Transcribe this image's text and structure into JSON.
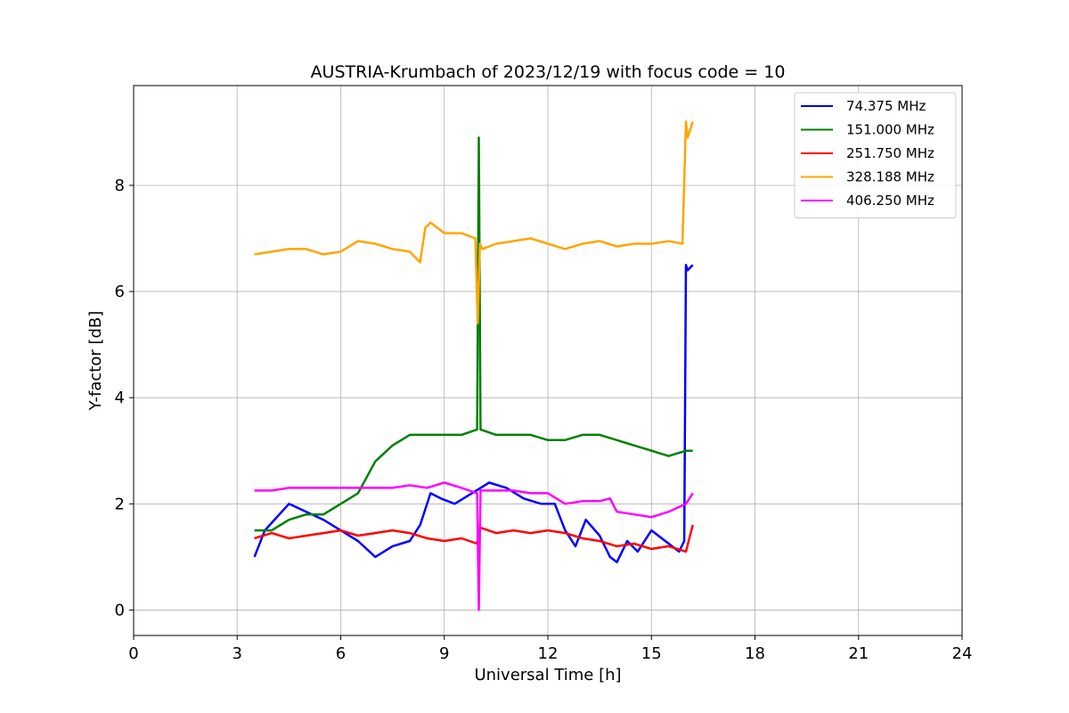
{
  "chart_data": {
    "type": "line",
    "title": "AUSTRIA-Krumbach of 2023/12/19 with focus code = 10",
    "xlabel": "Universal Time [h]",
    "ylabel": "Y-factor [dB]",
    "xlim": [
      0,
      24
    ],
    "ylim": [
      -0.48,
      9.88
    ],
    "x_ticks": [
      0,
      3,
      6,
      9,
      12,
      15,
      18,
      21,
      24
    ],
    "y_ticks": [
      0,
      2,
      4,
      6,
      8
    ],
    "grid": true,
    "legend_position": "top-right",
    "series": [
      {
        "name": " 74.375 MHz",
        "color": "#0000ff",
        "x": [
          3.5,
          3.8,
          4.5,
          5.5,
          6.5,
          7.0,
          7.5,
          8.0,
          8.3,
          8.6,
          8.9,
          9.3,
          9.8,
          10.3,
          10.8,
          11.3,
          11.8,
          12.2,
          12.5,
          12.8,
          13.1,
          13.5,
          13.8,
          14.0,
          14.3,
          14.6,
          15.0,
          15.4,
          15.8,
          15.95,
          16.0,
          16.05,
          16.2
        ],
        "y": [
          1.0,
          1.5,
          2.0,
          1.7,
          1.3,
          1.0,
          1.2,
          1.3,
          1.6,
          2.2,
          2.1,
          2.0,
          2.2,
          2.4,
          2.3,
          2.1,
          2.0,
          2.0,
          1.5,
          1.2,
          1.7,
          1.4,
          1.0,
          0.9,
          1.3,
          1.1,
          1.5,
          1.3,
          1.1,
          1.3,
          6.5,
          6.4,
          6.5
        ]
      },
      {
        "name": "151.000 MHz",
        "color": "#008000",
        "x": [
          3.5,
          4.0,
          4.5,
          5.0,
          5.5,
          6.0,
          6.5,
          7.0,
          7.5,
          8.0,
          8.5,
          9.0,
          9.5,
          9.95,
          10.0,
          10.05,
          10.5,
          11.0,
          11.5,
          12.0,
          12.5,
          13.0,
          13.5,
          14.0,
          14.5,
          15.0,
          15.5,
          16.0,
          16.2
        ],
        "y": [
          1.5,
          1.5,
          1.7,
          1.8,
          1.8,
          2.0,
          2.2,
          2.8,
          3.1,
          3.3,
          3.3,
          3.3,
          3.3,
          3.4,
          8.9,
          3.4,
          3.3,
          3.3,
          3.3,
          3.2,
          3.2,
          3.3,
          3.3,
          3.2,
          3.1,
          3.0,
          2.9,
          3.0,
          3.0
        ]
      },
      {
        "name": "251.750 MHz",
        "color": "#ff0000",
        "x": [
          3.5,
          4.0,
          4.5,
          5.0,
          5.5,
          6.0,
          6.5,
          7.0,
          7.5,
          8.0,
          8.5,
          9.0,
          9.5,
          9.95,
          10.0,
          10.05,
          10.5,
          11.0,
          11.5,
          12.0,
          12.5,
          13.0,
          13.5,
          14.0,
          14.5,
          15.0,
          15.5,
          16.0,
          16.2
        ],
        "y": [
          1.35,
          1.45,
          1.35,
          1.4,
          1.45,
          1.5,
          1.4,
          1.45,
          1.5,
          1.45,
          1.35,
          1.3,
          1.35,
          1.25,
          1.55,
          1.55,
          1.45,
          1.5,
          1.45,
          1.5,
          1.45,
          1.35,
          1.3,
          1.2,
          1.25,
          1.15,
          1.2,
          1.1,
          1.6
        ]
      },
      {
        "name": "328.188 MHz",
        "color": "#ffa500",
        "x": [
          3.5,
          4.0,
          4.5,
          5.0,
          5.5,
          6.0,
          6.5,
          7.0,
          7.5,
          8.0,
          8.3,
          8.45,
          8.6,
          9.0,
          9.5,
          9.9,
          9.97,
          10.03,
          10.1,
          10.5,
          11.0,
          11.5,
          12.0,
          12.5,
          13.0,
          13.5,
          14.0,
          14.5,
          15.0,
          15.5,
          15.9,
          16.0,
          16.05,
          16.2
        ],
        "y": [
          6.7,
          6.75,
          6.8,
          6.8,
          6.7,
          6.75,
          6.95,
          6.9,
          6.8,
          6.75,
          6.55,
          7.2,
          7.3,
          7.1,
          7.1,
          7.0,
          5.4,
          6.9,
          6.8,
          6.9,
          6.95,
          7.0,
          6.9,
          6.8,
          6.9,
          6.95,
          6.85,
          6.9,
          6.9,
          6.95,
          6.9,
          9.2,
          8.9,
          9.2
        ]
      },
      {
        "name": "406.250 MHz",
        "color": "#ff00ff",
        "x": [
          3.5,
          4.0,
          4.5,
          5.0,
          5.5,
          6.0,
          6.5,
          7.0,
          7.5,
          8.0,
          8.5,
          9.0,
          9.5,
          9.95,
          10.0,
          10.05,
          10.5,
          11.0,
          11.5,
          12.0,
          12.5,
          13.0,
          13.5,
          13.8,
          14.0,
          14.5,
          15.0,
          15.5,
          16.0,
          16.2
        ],
        "y": [
          2.25,
          2.25,
          2.3,
          2.3,
          2.3,
          2.3,
          2.3,
          2.3,
          2.3,
          2.35,
          2.3,
          2.4,
          2.3,
          2.2,
          0.0,
          2.25,
          2.25,
          2.25,
          2.2,
          2.2,
          2.0,
          2.05,
          2.05,
          2.1,
          1.85,
          1.8,
          1.75,
          1.85,
          2.0,
          2.2
        ]
      }
    ]
  }
}
